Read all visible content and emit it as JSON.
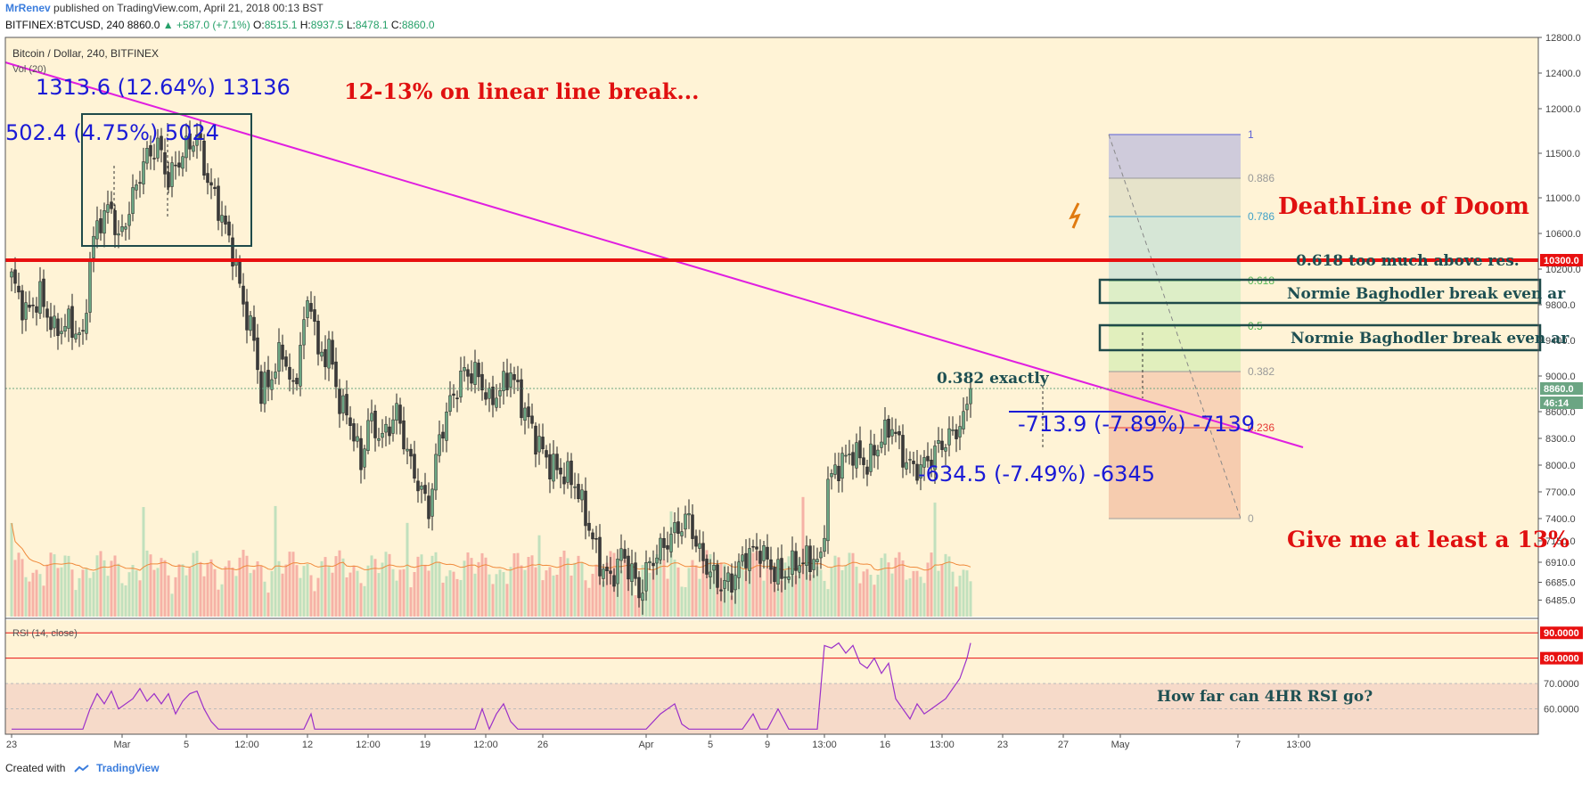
{
  "header": {
    "author": "MrRenev",
    "published_text": "published on TradingView.com, April 21, 2018 00:13 BST",
    "symbol": "BITFINEX:BTCUSD, 240",
    "last": "8860.0",
    "change": "▲ +587.0 (+7.1%)",
    "o_label": "O:",
    "o_value": "8515.1",
    "h_label": "H:",
    "h_value": "8937.5",
    "l_label": "L:",
    "l_value": "8478.1",
    "c_label": "C:",
    "c_value": "8860.0"
  },
  "footer": {
    "created_with": "Created with",
    "brand": "TradingView"
  },
  "colors": {
    "background": "#fff3d6",
    "up": "#6ba583",
    "down": "#3a3a3a",
    "trendline": "#e01ee0",
    "deathline": "#e81010",
    "annotation_blue": "#1a1ad6",
    "annotation_red": "#e01010",
    "annotation_teal": "#1d4f52",
    "rsi_line": "#9b30c9"
  },
  "chart_data": {
    "type": "candlestick",
    "pane_title": "Bitcoin / Dollar, 240, BITFINEX",
    "volume_label": "Vol (20)",
    "ylim": [
      6300,
      12800
    ],
    "y_ticks": [
      "12800.0",
      "12400.0",
      "12000.0",
      "11500.0",
      "11000.0",
      "10600.0",
      "10200.0",
      "9800.0",
      "9400.0",
      "9000.0",
      "8600.0",
      "8300.0",
      "8000.0",
      "7700.0",
      "7400.0",
      "7150.0",
      "6910.0",
      "6685.0",
      "6485.0"
    ],
    "y_tick_values": [
      12800,
      12400,
      12000,
      11500,
      11000,
      10600,
      10200,
      9800,
      9400,
      9000,
      8600,
      8300,
      8000,
      7700,
      7400,
      7150,
      6910,
      6685,
      6485
    ],
    "x_ticks": [
      "23",
      "Mar",
      "5",
      "12:00",
      "12",
      "12:00",
      "19",
      "12:00",
      "26",
      "Apr",
      "5",
      "9",
      "13:00",
      "16",
      "13:00",
      "23",
      "27",
      "May",
      "7",
      "13:00"
    ],
    "x_tick_index": [
      0,
      31,
      49,
      66,
      83,
      100,
      116,
      133,
      149,
      178,
      196,
      212,
      228,
      245,
      261,
      278,
      295,
      311,
      344,
      361
    ],
    "price_labels": [
      {
        "text": "10300.0",
        "value": 10300,
        "color": "#e81010"
      },
      {
        "text": "8860.0",
        "value": 8860,
        "color": "#6ba583"
      },
      {
        "text": "46:14",
        "value": 8700,
        "color": "#6ba583"
      }
    ],
    "anchors": [
      {
        "i": 0,
        "p": 10100
      },
      {
        "i": 4,
        "p": 9700
      },
      {
        "i": 8,
        "p": 9900
      },
      {
        "i": 12,
        "p": 9500
      },
      {
        "i": 16,
        "p": 9600
      },
      {
        "i": 20,
        "p": 9400
      },
      {
        "i": 22,
        "p": 10300
      },
      {
        "i": 24,
        "p": 10700
      },
      {
        "i": 28,
        "p": 10900
      },
      {
        "i": 30,
        "p": 10500
      },
      {
        "i": 34,
        "p": 11000
      },
      {
        "i": 37,
        "p": 11400
      },
      {
        "i": 41,
        "p": 11600
      },
      {
        "i": 44,
        "p": 11200
      },
      {
        "i": 48,
        "p": 11500
      },
      {
        "i": 52,
        "p": 11700
      },
      {
        "i": 55,
        "p": 11200
      },
      {
        "i": 58,
        "p": 10900
      },
      {
        "i": 62,
        "p": 10400
      },
      {
        "i": 65,
        "p": 9800
      },
      {
        "i": 68,
        "p": 9400
      },
      {
        "i": 70,
        "p": 8800
      },
      {
        "i": 73,
        "p": 9000
      },
      {
        "i": 76,
        "p": 9300
      },
      {
        "i": 79,
        "p": 8800
      },
      {
        "i": 82,
        "p": 9600
      },
      {
        "i": 84,
        "p": 9900
      },
      {
        "i": 86,
        "p": 9200
      },
      {
        "i": 89,
        "p": 9300
      },
      {
        "i": 92,
        "p": 8700
      },
      {
        "i": 95,
        "p": 8500
      },
      {
        "i": 98,
        "p": 8000
      },
      {
        "i": 100,
        "p": 8500
      },
      {
        "i": 104,
        "p": 8300
      },
      {
        "i": 108,
        "p": 8600
      },
      {
        "i": 112,
        "p": 8000
      },
      {
        "i": 115,
        "p": 7700
      },
      {
        "i": 117,
        "p": 7500
      },
      {
        "i": 120,
        "p": 8300
      },
      {
        "i": 123,
        "p": 8700
      },
      {
        "i": 127,
        "p": 9050
      },
      {
        "i": 131,
        "p": 9000
      },
      {
        "i": 134,
        "p": 8700
      },
      {
        "i": 138,
        "p": 8900
      },
      {
        "i": 140,
        "p": 9050
      },
      {
        "i": 143,
        "p": 8700
      },
      {
        "i": 147,
        "p": 8300
      },
      {
        "i": 151,
        "p": 8000
      },
      {
        "i": 155,
        "p": 7900
      },
      {
        "i": 158,
        "p": 7800
      },
      {
        "i": 162,
        "p": 7300
      },
      {
        "i": 165,
        "p": 6900
      },
      {
        "i": 168,
        "p": 6700
      },
      {
        "i": 171,
        "p": 7000
      },
      {
        "i": 174,
        "p": 6800
      },
      {
        "i": 176,
        "p": 6550
      },
      {
        "i": 179,
        "p": 6900
      },
      {
        "i": 183,
        "p": 7100
      },
      {
        "i": 187,
        "p": 7300
      },
      {
        "i": 190,
        "p": 7400
      },
      {
        "i": 193,
        "p": 7000
      },
      {
        "i": 196,
        "p": 6800
      },
      {
        "i": 199,
        "p": 6650
      },
      {
        "i": 202,
        "p": 6700
      },
      {
        "i": 206,
        "p": 7000
      },
      {
        "i": 210,
        "p": 7050
      },
      {
        "i": 213,
        "p": 6850
      },
      {
        "i": 216,
        "p": 6750
      },
      {
        "i": 220,
        "p": 6900
      },
      {
        "i": 225,
        "p": 6950
      },
      {
        "i": 227,
        "p": 6900
      },
      {
        "i": 229,
        "p": 7800
      },
      {
        "i": 232,
        "p": 8000
      },
      {
        "i": 236,
        "p": 8150
      },
      {
        "i": 240,
        "p": 8000
      },
      {
        "i": 244,
        "p": 8300
      },
      {
        "i": 247,
        "p": 8450
      },
      {
        "i": 250,
        "p": 8100
      },
      {
        "i": 253,
        "p": 7950
      },
      {
        "i": 256,
        "p": 8000
      },
      {
        "i": 260,
        "p": 8200
      },
      {
        "i": 264,
        "p": 8350
      },
      {
        "i": 267,
        "p": 8500
      },
      {
        "i": 269,
        "p": 8860
      }
    ],
    "fibonacci": {
      "levels": [
        {
          "ratio": "1",
          "value": 11710,
          "color": "#5b5fd6"
        },
        {
          "ratio": "0.886",
          "value": 11220,
          "color": "#999999"
        },
        {
          "ratio": "0.786",
          "value": 10790,
          "color": "#3fa0c8"
        },
        {
          "ratio": "0.618",
          "value": 10070,
          "color": "#5aba5a"
        },
        {
          "ratio": "0.5",
          "value": 9560,
          "color": "#4caf50"
        },
        {
          "ratio": "0.382",
          "value": 9050,
          "color": "#9a9a9a"
        },
        {
          "ratio": "0.236",
          "value": 8420,
          "color": "#e53935"
        },
        {
          "ratio": "0",
          "value": 7400,
          "color": "#9e9e9e"
        }
      ]
    },
    "rsi": {
      "label": "RSI (14, close)",
      "ylim": [
        50,
        95
      ],
      "ticks": [
        {
          "text": "90.0000",
          "value": 90,
          "color": "#e81010"
        },
        {
          "text": "80.0000",
          "value": 80,
          "color": "#e81010"
        },
        {
          "text": "70.0000",
          "value": 70
        },
        {
          "text": "60.0000",
          "value": 60
        }
      ],
      "points": [
        [
          0,
          52
        ],
        [
          20,
          52
        ],
        [
          22,
          60
        ],
        [
          24,
          66
        ],
        [
          26,
          62
        ],
        [
          28,
          67
        ],
        [
          30,
          60
        ],
        [
          34,
          64
        ],
        [
          36,
          68
        ],
        [
          38,
          63
        ],
        [
          40,
          66
        ],
        [
          42,
          62
        ],
        [
          44,
          66
        ],
        [
          46,
          58
        ],
        [
          48,
          63
        ],
        [
          50,
          66
        ],
        [
          52,
          67
        ],
        [
          54,
          60
        ],
        [
          56,
          55
        ],
        [
          58,
          52
        ],
        [
          60,
          52
        ],
        [
          82,
          52
        ],
        [
          84,
          58
        ],
        [
          85,
          52
        ],
        [
          86,
          52
        ],
        [
          130,
          52
        ],
        [
          132,
          60
        ],
        [
          134,
          52
        ],
        [
          136,
          58
        ],
        [
          138,
          62
        ],
        [
          140,
          55
        ],
        [
          142,
          52
        ],
        [
          175,
          52
        ],
        [
          178,
          52
        ],
        [
          182,
          58
        ],
        [
          186,
          62
        ],
        [
          188,
          54
        ],
        [
          190,
          52
        ],
        [
          205,
          52
        ],
        [
          208,
          58
        ],
        [
          210,
          52
        ],
        [
          212,
          52
        ],
        [
          215,
          60
        ],
        [
          218,
          52
        ],
        [
          226,
          52
        ],
        [
          228,
          85
        ],
        [
          230,
          84
        ],
        [
          232,
          86
        ],
        [
          234,
          82
        ],
        [
          236,
          85
        ],
        [
          238,
          78
        ],
        [
          240,
          76
        ],
        [
          242,
          80
        ],
        [
          244,
          74
        ],
        [
          246,
          78
        ],
        [
          248,
          64
        ],
        [
          250,
          60
        ],
        [
          252,
          56
        ],
        [
          254,
          62
        ],
        [
          256,
          58
        ],
        [
          258,
          60
        ],
        [
          260,
          62
        ],
        [
          262,
          64
        ],
        [
          264,
          68
        ],
        [
          266,
          72
        ],
        [
          268,
          80
        ],
        [
          269,
          86
        ]
      ]
    },
    "annotations": {
      "top_left_measure": "1313.6 (12.64%) 13136",
      "inner_measure": "502.4 (4.75%) 5024",
      "linear_break": "12-13% on linear line break...",
      "deathline": "DeathLine of Doom",
      "fib_618_note": "0.618 too much above res.",
      "normie_1": "Normie Baghodler break even ar",
      "normie_2": "Normie Baghodler break even ar",
      "fib_382_note": "0.382 exactly",
      "measure_down_1": "-713.9 (-7.89%) -7139",
      "measure_down_2": "-634.5 (-7.49%) -6345",
      "give_me": "Give me at least a 13%",
      "rsi_question": "How far can 4HR RSI go?"
    }
  }
}
